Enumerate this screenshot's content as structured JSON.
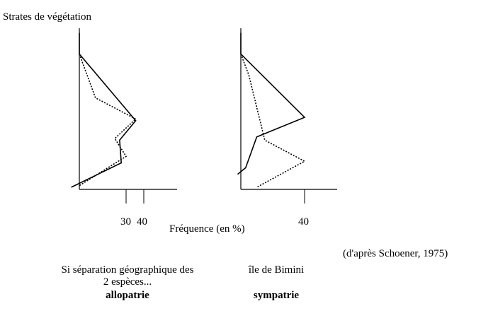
{
  "chart_data": [
    {
      "type": "line",
      "ylabel": "Strates de végétation",
      "xlabel": "Fréquence (en %)",
      "x_ticks": [
        "30",
        "40"
      ],
      "series": [
        {
          "style": "solid",
          "points": [
            [
              0,
              95
            ],
            [
              0,
              82
            ],
            [
              35,
              41
            ],
            [
              25,
              29
            ],
            [
              26,
              15
            ],
            [
              -5,
              0
            ]
          ]
        },
        {
          "style": "dotted",
          "points": [
            [
              0,
              82
            ],
            [
              10,
              55
            ],
            [
              35,
              42
            ],
            [
              22,
              30
            ],
            [
              29,
              19
            ],
            [
              0,
              1
            ]
          ]
        }
      ],
      "caption": [
        "Si séparation géographique des",
        "2 espèces..."
      ],
      "caption_bold": "allopatrie"
    },
    {
      "type": "line",
      "ylabel": "",
      "xlabel": "",
      "x_ticks": [
        "40"
      ],
      "series": [
        {
          "style": "solid",
          "points": [
            [
              0,
              95
            ],
            [
              0,
              82
            ],
            [
              40,
              43
            ],
            [
              10,
              31
            ],
            [
              3,
              12
            ],
            [
              -2,
              8
            ]
          ]
        },
        {
          "style": "dotted",
          "points": [
            [
              0,
              82
            ],
            [
              5,
              69
            ],
            [
              15,
              29
            ],
            [
              40,
              16
            ],
            [
              10,
              0
            ]
          ]
        }
      ],
      "caption": [
        "île de Bimini"
      ],
      "caption_bold": "sympatrie"
    }
  ],
  "source_note": "(d'après Schoener, 1975)"
}
